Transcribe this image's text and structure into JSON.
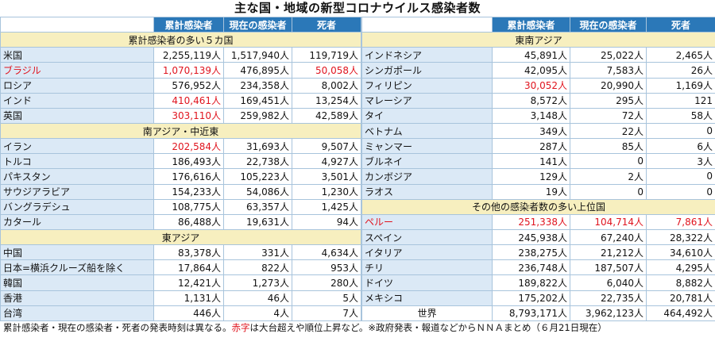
{
  "title": "主な国・地域の新型コロナウイルス感染者数",
  "headers": [
    "累計感染者",
    "現在の感染者",
    "死者"
  ],
  "left": [
    {
      "section": "累計感染者の多い５カ国",
      "rows": [
        {
          "name": "米国",
          "total": "2,255,119人",
          "current": "1,517,940人",
          "deaths": "119,719人"
        },
        {
          "name": "ブラジル",
          "total": "1,070,139人",
          "current": "476,895人",
          "deaths": "50,058人",
          "red": [
            "name",
            "total",
            "deaths"
          ]
        },
        {
          "name": "ロシア",
          "total": "576,952人",
          "current": "234,358人",
          "deaths": "8,002人"
        },
        {
          "name": "インド",
          "total": "410,461人",
          "current": "169,451人",
          "deaths": "13,254人",
          "red": [
            "total"
          ]
        },
        {
          "name": "英国",
          "total": "303,110人",
          "current": "259,982人",
          "deaths": "42,589人",
          "red": [
            "total"
          ]
        }
      ]
    },
    {
      "section": "南アジア・中近東",
      "rows": [
        {
          "name": "イラン",
          "total": "202,584人",
          "current": "31,693人",
          "deaths": "9,507人",
          "red": [
            "total"
          ]
        },
        {
          "name": "トルコ",
          "total": "186,493人",
          "current": "22,738人",
          "deaths": "4,927人"
        },
        {
          "name": "パキスタン",
          "total": "176,616人",
          "current": "105,223人",
          "deaths": "3,501人"
        },
        {
          "name": "サウジアラビア",
          "total": "154,233人",
          "current": "54,086人",
          "deaths": "1,230人"
        },
        {
          "name": "バングラデシュ",
          "total": "108,775人",
          "current": "63,357人",
          "deaths": "1,425人"
        },
        {
          "name": "カタール",
          "total": "86,488人",
          "current": "19,631人",
          "deaths": "94人"
        }
      ]
    },
    {
      "section": "東アジア",
      "rows": [
        {
          "name": "中国",
          "total": "83,378人",
          "current": "331人",
          "deaths": "4,634人"
        },
        {
          "name": "日本=横浜クルーズ船を除く",
          "total": "17,864人",
          "current": "822人",
          "deaths": "953人"
        },
        {
          "name": "韓国",
          "total": "12,421人",
          "current": "1,273人",
          "deaths": "280人"
        },
        {
          "name": "香港",
          "total": "1,131人",
          "current": "46人",
          "deaths": "5人"
        },
        {
          "name": "台湾",
          "total": "446人",
          "current": "4人",
          "deaths": "7人"
        }
      ]
    }
  ],
  "right": [
    {
      "section": "東南アジア",
      "rows": [
        {
          "name": "インドネシア",
          "total": "45,891人",
          "current": "25,022人",
          "deaths": "2,465人"
        },
        {
          "name": "シンガポール",
          "total": "42,095人",
          "current": "7,583人",
          "deaths": "26人"
        },
        {
          "name": "フィリピン",
          "total": "30,052人",
          "current": "20,990人",
          "deaths": "1,169人",
          "red": [
            "total"
          ]
        },
        {
          "name": "マレーシア",
          "total": "8,572人",
          "current": "295人",
          "deaths": "121"
        },
        {
          "name": "タイ",
          "total": "3,148人",
          "current": "72人",
          "deaths": "58人"
        },
        {
          "name": "ベトナム",
          "total": "349人",
          "current": "22人",
          "deaths": "0"
        },
        {
          "name": "ミャンマー",
          "total": "287人",
          "current": "85人",
          "deaths": "6人"
        },
        {
          "name": "ブルネイ",
          "total": "141人",
          "current": "0",
          "deaths": "3人"
        },
        {
          "name": "カンボジア",
          "total": "129人",
          "current": "2人",
          "deaths": "0"
        },
        {
          "name": "ラオス",
          "total": "19人",
          "current": "0",
          "deaths": "0"
        }
      ]
    },
    {
      "section": "その他の感染者数の多い上位国",
      "rows": [
        {
          "name": "ペルー",
          "total": "251,338人",
          "current": "104,714人",
          "deaths": "7,861人",
          "red": [
            "name",
            "total",
            "current",
            "deaths"
          ]
        },
        {
          "name": "スペイン",
          "total": "245,938人",
          "current": "67,240人",
          "deaths": "28,322人"
        },
        {
          "name": "イタリア",
          "total": "238,275人",
          "current": "21,212人",
          "deaths": "34,610人"
        },
        {
          "name": "チリ",
          "total": "236,748人",
          "current": "187,507人",
          "deaths": "4,295人"
        },
        {
          "name": "ドイツ",
          "total": "189,822人",
          "current": "6,040人",
          "deaths": "8,882人"
        },
        {
          "name": "メキシコ",
          "total": "175,202人",
          "current": "22,735人",
          "deaths": "20,781人"
        }
      ]
    }
  ],
  "world": {
    "name": "世界",
    "total": "8,793,171人",
    "current": "3,962,123人",
    "deaths": "464,492人"
  },
  "footnote": {
    "part1": "累計感染者・現在の感染者・死者の発表時刻は異なる。",
    "red_word": "赤字",
    "part2": "は大台超えや順位上昇など。※政府発表・報道などからＮＮＡまとめ（６月21日現在）"
  },
  "colors": {
    "header": "#2b78b8",
    "name_bg": "#dbe9f6",
    "section_bg": "#f7efbf",
    "red": "#e0141e",
    "border": "#a8c4dc"
  }
}
